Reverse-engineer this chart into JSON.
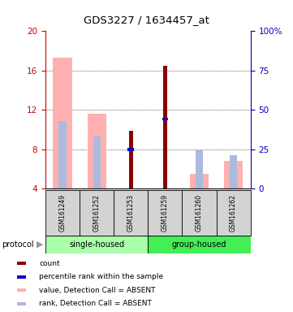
{
  "title": "GDS3227 / 1634457_at",
  "samples": [
    "GSM161249",
    "GSM161252",
    "GSM161253",
    "GSM161259",
    "GSM161260",
    "GSM161262"
  ],
  "ylim_left": [
    4,
    20
  ],
  "ylim_right": [
    0,
    100
  ],
  "yticks_left": [
    4,
    8,
    12,
    16,
    20
  ],
  "yticks_right": [
    0,
    25,
    50,
    75,
    100
  ],
  "ytick_labels_left": [
    "4",
    "8",
    "12",
    "16",
    "20"
  ],
  "ytick_labels_right": [
    "0",
    "25",
    "50",
    "75",
    "100%"
  ],
  "absent_value_bars": [
    17.3,
    11.6,
    null,
    null,
    5.5,
    6.8
  ],
  "absent_rank_bars": [
    10.9,
    9.3,
    null,
    null,
    7.9,
    7.4
  ],
  "count_bars": [
    null,
    null,
    9.9,
    16.5,
    null,
    null
  ],
  "rank_bars": [
    null,
    null,
    8.0,
    11.1,
    null,
    null
  ],
  "absent_value_color": "#FFB0B0",
  "absent_rank_color": "#AABBDD",
  "count_color": "#8B0000",
  "rank_color": "#0000CC",
  "bar_bottom": 4.0,
  "wide_bar_width": 0.55,
  "narrow_bar_width": 0.12,
  "rank_bar_height": 0.28,
  "single_housed_color": "#AAFFAA",
  "group_housed_color": "#44EE55",
  "sample_box_color": "#D3D3D3",
  "left_axis_color": "#CC0000",
  "right_axis_color": "#0000BB",
  "legend_items": [
    {
      "label": "count",
      "color": "#8B0000"
    },
    {
      "label": "percentile rank within the sample",
      "color": "#0000CC"
    },
    {
      "label": "value, Detection Call = ABSENT",
      "color": "#FFB0B0"
    },
    {
      "label": "rank, Detection Call = ABSENT",
      "color": "#AABBDD"
    }
  ]
}
